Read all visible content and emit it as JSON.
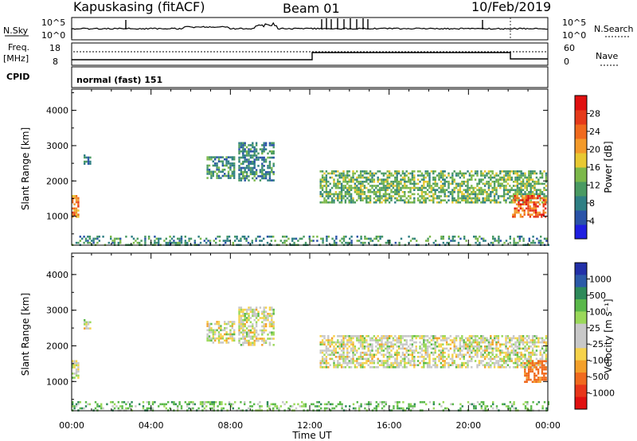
{
  "header": {
    "station": "Kapuskasing (fitACF)",
    "beam": "Beam 01",
    "date": "10/Feb/2019"
  },
  "noise_panel": {
    "left_label": "N.Sky",
    "right_label": "N.Search",
    "left_ticks": [
      "10^5",
      "10^0"
    ],
    "right_ticks": [
      "10^5",
      "10^0"
    ]
  },
  "freq_panel": {
    "left_label_line1": "Freq.",
    "left_label_line2": "[MHz]",
    "left_ticks": [
      "18",
      "8"
    ],
    "right_label": "Nave",
    "right_ticks": [
      "60",
      "0"
    ]
  },
  "cpid_panel": {
    "label": "CPID",
    "text": "normal (fast) 151"
  },
  "axes": {
    "x_ticks": [
      "00:00",
      "04:00",
      "08:00",
      "12:00",
      "16:00",
      "20:00",
      "00:00"
    ],
    "x_label": "Time UT",
    "y_ticks": [
      "4000",
      "3000",
      "2000",
      "1000"
    ],
    "y_label": "Slant Range [km]"
  },
  "colorbars": {
    "power": {
      "label": "Power [dB]",
      "ticks": [
        "28",
        "24",
        "20",
        "16",
        "12",
        "8",
        "4"
      ],
      "colors": [
        "#1f1fe0",
        "#2a53a8",
        "#2f7f84",
        "#4a9a62",
        "#7cb84a",
        "#e8c832",
        "#f39a2a",
        "#f06a1e",
        "#e63a1a",
        "#e01010"
      ]
    },
    "velocity": {
      "label": "Velocity [m s⁻¹]",
      "ticks": [
        "1000",
        "500",
        "100",
        "25",
        "-25",
        "-100",
        "-500",
        "-1000"
      ],
      "colors": [
        "#2230a8",
        "#2c5aa8",
        "#2e8a5a",
        "#5ab84a",
        "#9ad85a",
        "#c8c8c8",
        "#c8c8c8",
        "#f6d24a",
        "#f3a02a",
        "#f06a1e",
        "#e8361a",
        "#e01010"
      ]
    }
  },
  "chart_data": [
    {
      "type": "heatmap",
      "title": "Kapuskasing (fitACF) Beam 01 10/Feb/2019",
      "xlabel": "Time UT",
      "ylabel": "Slant Range [km]",
      "xlim": [
        "00:00",
        "24:00"
      ],
      "ylim": [
        180,
        4600
      ],
      "colorbar_label": "Power [dB]",
      "colorbar_ticks": [
        4,
        8,
        12,
        16,
        20,
        24,
        28
      ],
      "echo_regions": [
        {
          "t_start": 0.0,
          "t_end": 0.3,
          "r_min": 1000,
          "r_max": 1600,
          "value": 22
        },
        {
          "t_start": 0.6,
          "t_end": 0.9,
          "r_min": 2500,
          "r_max": 2750,
          "value": 9
        },
        {
          "t_start": 6.8,
          "t_end": 8.2,
          "r_min": 2100,
          "r_max": 2700,
          "value": 10
        },
        {
          "t_start": 8.4,
          "t_end": 10.2,
          "r_min": 2000,
          "r_max": 3100,
          "value": 9
        },
        {
          "t_start": 12.5,
          "t_end": 23.9,
          "r_min": 1400,
          "r_max": 2300,
          "value": 13
        },
        {
          "t_start": 22.2,
          "t_end": 23.9,
          "r_min": 1000,
          "r_max": 1600,
          "value": 25
        },
        {
          "t_start": 0.0,
          "t_end": 24.0,
          "r_min": 180,
          "r_max": 450,
          "value": 10
        }
      ]
    },
    {
      "type": "heatmap",
      "xlabel": "Time UT",
      "ylabel": "Slant Range [km]",
      "xlim": [
        "00:00",
        "24:00"
      ],
      "ylim": [
        180,
        4600
      ],
      "colorbar_label": "Velocity [m s⁻¹]",
      "colorbar_ticks": [
        1000,
        500,
        100,
        25,
        -25,
        -100,
        -500,
        -1000
      ],
      "echo_regions": [
        {
          "t_start": 0.0,
          "t_end": 0.3,
          "r_min": 1100,
          "r_max": 1600,
          "value": 0
        },
        {
          "t_start": 0.6,
          "t_end": 0.9,
          "r_min": 2500,
          "r_max": 2750,
          "value": 0
        },
        {
          "t_start": 6.8,
          "t_end": 8.2,
          "r_min": 2100,
          "r_max": 2700,
          "value": 0
        },
        {
          "t_start": 8.4,
          "t_end": 10.2,
          "r_min": 2000,
          "r_max": 3100,
          "value": 0
        },
        {
          "t_start": 12.5,
          "t_end": 23.9,
          "r_min": 1400,
          "r_max": 2300,
          "value": 0
        },
        {
          "t_start": 22.8,
          "t_end": 23.9,
          "r_min": 1000,
          "r_max": 1600,
          "value": -150
        },
        {
          "t_start": 0.0,
          "t_end": 24.0,
          "r_min": 180,
          "r_max": 450,
          "value": 60
        }
      ]
    }
  ]
}
